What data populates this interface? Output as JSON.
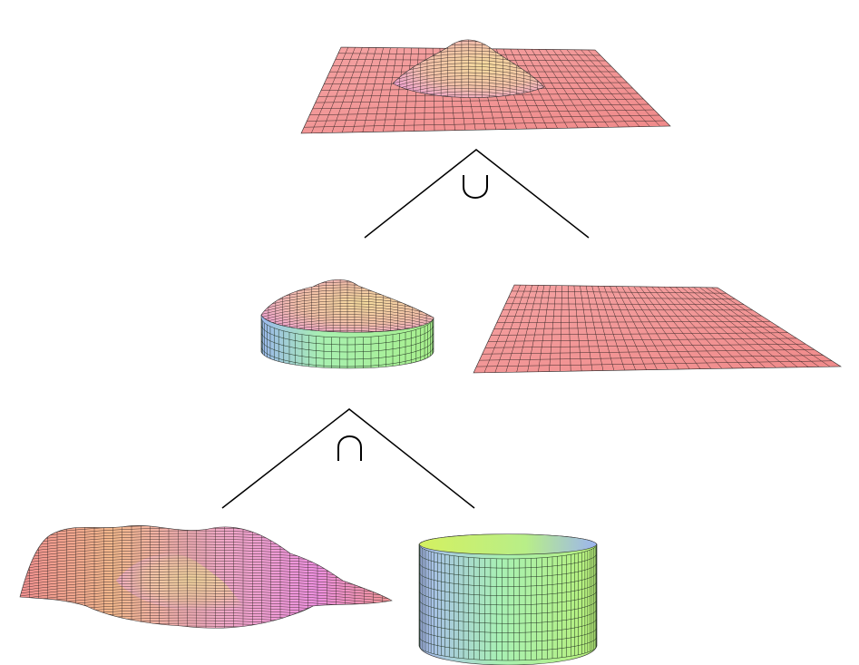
{
  "diagram": {
    "type": "csg-tree",
    "operators": {
      "union": {
        "symbol": "∪"
      },
      "intersection": {
        "symbol": "∩"
      }
    },
    "nodes": {
      "result": {
        "shape": "plane-with-bump"
      },
      "clipped_bump": {
        "shape": "bump-cylinder-intersection"
      },
      "plane": {
        "shape": "flat-plane"
      },
      "wavy_surface": {
        "shape": "bump-surface"
      },
      "cylinder": {
        "shape": "cylinder"
      }
    },
    "colors": {
      "salmon": "#f28c8c",
      "peach": "#f5d29a",
      "pink": "#f0a0d8",
      "green": "#a8f08c",
      "teal": "#6ee6c8",
      "blue": "#9cb8ee",
      "yellow_green": "#c8f070",
      "mesh_line": "#202020",
      "tree_line": "#000000"
    }
  }
}
